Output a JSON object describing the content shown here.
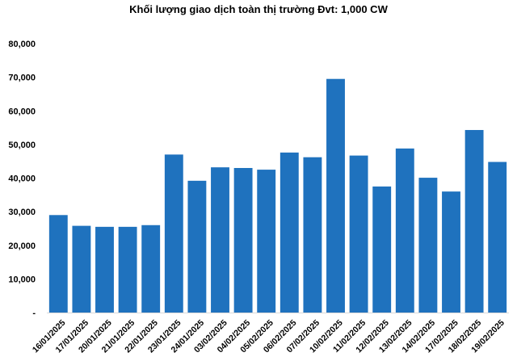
{
  "chart_data": {
    "type": "bar",
    "title": "Khối lượng giao dịch toàn thị trường Đvt: 1,000 CW",
    "xlabel": "",
    "ylabel": "",
    "ylim": [
      0,
      80000
    ],
    "yticks": [
      "-",
      "10,000",
      "20,000",
      "30,000",
      "40,000",
      "50,000",
      "60,000",
      "70,000",
      "80,000"
    ],
    "grid": false,
    "bar_color": "#1F72BE",
    "categories": [
      "16/01/2025",
      "17/01/2025",
      "20/01/2025",
      "21/01/2025",
      "22/01/2025",
      "23/01/2025",
      "24/01/2025",
      "03/02/2025",
      "04/02/2025",
      "05/02/2025",
      "06/02/2025",
      "07/02/2025",
      "10/02/2025",
      "11/02/2025",
      "12/02/2025",
      "13/02/2025",
      "14/02/2025",
      "17/02/2025",
      "18/02/2025",
      "19/02/2025"
    ],
    "values": [
      29000,
      25800,
      25500,
      25500,
      26000,
      47000,
      39200,
      43200,
      43000,
      42500,
      47600,
      46200,
      69500,
      46700,
      37500,
      48800,
      40100,
      36000,
      54300,
      44800
    ]
  }
}
